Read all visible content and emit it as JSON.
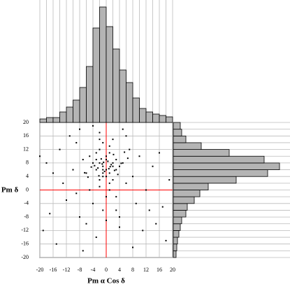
{
  "chart_data": [
    {
      "type": "scatter",
      "x_label": "Pm α Cos δ",
      "y_label": "Pm δ",
      "color": "#000000",
      "grid": true,
      "reference_color": "#ff0000",
      "xlim": [
        -20,
        20
      ],
      "ylim": [
        -20,
        20
      ],
      "xticks": [
        -20,
        -16,
        -12,
        -8,
        -4,
        0,
        4,
        8,
        12,
        16,
        20
      ],
      "yticks": [
        -20,
        -16,
        -12,
        -8,
        -4,
        0,
        4,
        8,
        12,
        16,
        20
      ],
      "x": [
        -1,
        0,
        -2,
        1,
        -3,
        2,
        -1,
        0,
        3,
        -4,
        -2,
        1,
        0,
        -1,
        2,
        -3,
        4,
        -5,
        1,
        -2,
        0,
        -1,
        3,
        -2,
        1,
        -6,
        5,
        -3,
        2,
        0,
        -1,
        -4,
        6,
        -7,
        3,
        -2,
        8,
        -9,
        4,
        -10,
        10,
        -12,
        12,
        -14,
        15,
        -16,
        17,
        -18,
        18,
        -19,
        -5,
        -8,
        7,
        9,
        -11,
        11,
        -13,
        13,
        -6,
        6,
        -15,
        14,
        -3,
        3,
        -7,
        5,
        -9,
        8,
        -1,
        1,
        -2,
        2,
        0,
        -4,
        4,
        -8,
        16,
        -17,
        19,
        -20,
        -2.5,
        1.5,
        -0.5,
        0.5,
        -3.5,
        2.5,
        -1.5,
        3.5,
        -4.5,
        4.5,
        -6.5,
        6.5,
        -0.8,
        0.8,
        -2.2,
        2.2,
        -1.2,
        1.2,
        -5.5,
        5.5
      ],
      "y": [
        7,
        6,
        8,
        5,
        9,
        7,
        4,
        10,
        6,
        8,
        3,
        11,
        9,
        5,
        8,
        6,
        7,
        10,
        2,
        12,
        4,
        6,
        9,
        1,
        13,
        5,
        8,
        11,
        3,
        -2,
        14,
        -4,
        2,
        9,
        -6,
        15,
        4,
        -1,
        -8,
        6,
        10,
        -3,
        0,
        12,
        -10,
        5,
        -5,
        8,
        -15,
        -12,
        0,
        -8,
        12,
        -4,
        16,
        -12,
        2,
        -6,
        -10,
        16,
        -16,
        7,
        -14,
        -2,
        -18,
        18,
        14,
        -17,
        -6,
        0,
        17,
        15,
        -9,
        19,
        -11,
        18,
        11,
        -7,
        3,
        10,
        6.5,
        7.5,
        5.5,
        8.5,
        7.2,
        5.8,
        9.2,
        4.6,
        6.8,
        7.9,
        5.1,
        9.4,
        8.2,
        6.3,
        4.2,
        10.5,
        7.7,
        6.9,
        3.8,
        11.2
      ]
    },
    {
      "type": "histogram",
      "orientation": "vertical",
      "color": "#b4b4b4",
      "bins": [
        -20,
        -18,
        -16,
        -14,
        -12,
        -10,
        -8,
        -6,
        -4,
        -2,
        0,
        2,
        4,
        6,
        8,
        10,
        12,
        14,
        16,
        18,
        20
      ],
      "values": [
        5,
        7,
        7,
        15,
        22,
        32,
        50,
        80,
        135,
        165,
        137,
        105,
        75,
        57,
        35,
        20,
        15,
        12,
        10,
        8
      ]
    },
    {
      "type": "histogram",
      "orientation": "horizontal",
      "color": "#b4b4b4",
      "bins": [
        -20,
        -18,
        -16,
        -14,
        -12,
        -10,
        -8,
        -6,
        -4,
        -2,
        0,
        2,
        4,
        6,
        8,
        10,
        12,
        14,
        16,
        18,
        20
      ],
      "values": [
        4,
        5,
        6,
        8,
        10,
        12,
        18,
        20,
        30,
        38,
        50,
        90,
        135,
        152,
        130,
        80,
        40,
        18,
        12,
        10
      ]
    }
  ]
}
